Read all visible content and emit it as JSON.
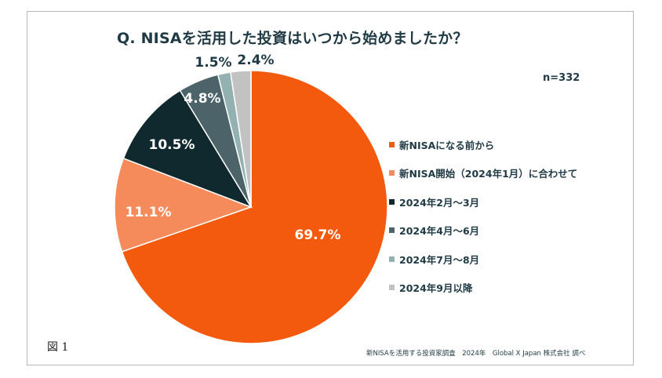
{
  "chart_data": {
    "type": "pie",
    "title": "Q. NISAを活用した投資はいつから始めましたか？",
    "sample_size": "n=332",
    "categories": [
      "新NISAになる前から",
      "新NISA開始（2024年1月）に合わせて",
      "2024年2月～3月",
      "2024年4月～6月",
      "2024年7月～8月",
      "2024年9月以降"
    ],
    "values": [
      69.7,
      11.1,
      10.5,
      4.8,
      1.5,
      2.4
    ],
    "value_labels": [
      "69.7%",
      "11.1%",
      "10.5%",
      "4.8%",
      "1.5%",
      "2.4%"
    ],
    "colors": [
      "#f45a0e",
      "#f58a5a",
      "#10292f",
      "#4c6369",
      "#94b1b1",
      "#c2c2c2"
    ],
    "label_colors": [
      "#ffffff",
      "#ffffff",
      "#ffffff",
      "#ffffff",
      "#1f3a44",
      "#1f3a44"
    ],
    "start_angle_deg": 0,
    "direction": "clockwise",
    "legend_position": "right"
  },
  "figure_label": "図 1",
  "source_note": "新NISAを活用する投資家調査　2024年　Global X Japan 株式会社 調べ"
}
